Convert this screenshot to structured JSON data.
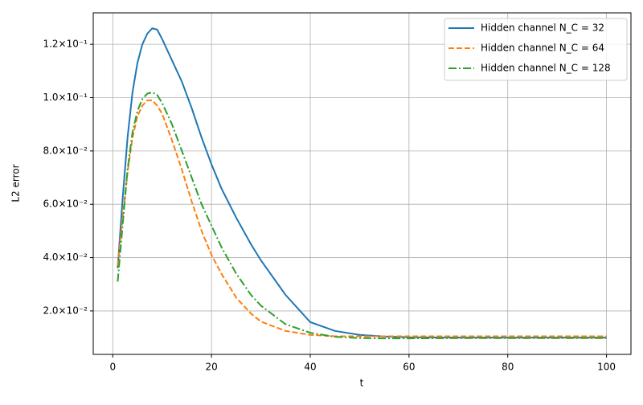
{
  "chart_data": {
    "type": "line",
    "xlabel": "t",
    "ylabel": "L2 error",
    "grid": true,
    "legend": "upper right",
    "x": [
      1,
      2,
      3,
      4,
      5,
      6,
      7,
      8,
      9,
      10,
      12,
      14,
      16,
      18,
      20,
      22,
      25,
      28,
      30,
      35,
      40,
      45,
      50,
      55,
      60,
      70,
      80,
      90,
      100
    ],
    "series": [
      {
        "name": "Hidden channel N_C = 32",
        "color": "#1f77b4",
        "linestyle": "solid",
        "values": [
          0.036,
          0.062,
          0.085,
          0.102,
          0.113,
          0.12,
          0.124,
          0.126,
          0.1255,
          0.122,
          0.114,
          0.106,
          0.096,
          0.085,
          0.075,
          0.066,
          0.055,
          0.045,
          0.039,
          0.026,
          0.0158,
          0.0125,
          0.011,
          0.0104,
          0.0101,
          0.01,
          0.01,
          0.01,
          0.01
        ]
      },
      {
        "name": "Hidden channel N_C = 64",
        "color": "#ff7f0e",
        "linestyle": "dashed",
        "values": [
          0.037,
          0.055,
          0.072,
          0.085,
          0.093,
          0.097,
          0.099,
          0.099,
          0.097,
          0.094,
          0.084,
          0.073,
          0.061,
          0.05,
          0.041,
          0.034,
          0.025,
          0.019,
          0.016,
          0.0125,
          0.011,
          0.0105,
          0.0105,
          0.0105,
          0.0105,
          0.0105,
          0.0105,
          0.0105,
          0.0105
        ]
      },
      {
        "name": "Hidden channel N_C = 128",
        "color": "#2ca02c",
        "linestyle": "dashdot",
        "values": [
          0.031,
          0.052,
          0.073,
          0.087,
          0.095,
          0.0995,
          0.1015,
          0.102,
          0.101,
          0.098,
          0.09,
          0.08,
          0.07,
          0.06,
          0.052,
          0.044,
          0.034,
          0.026,
          0.022,
          0.015,
          0.0118,
          0.0103,
          0.0098,
          0.0097,
          0.0097,
          0.0098,
          0.0098,
          0.0098,
          0.0098
        ]
      }
    ],
    "xlim": [
      -3.95,
      104.95
    ],
    "xticks": [
      0,
      20,
      40,
      60,
      80,
      100
    ],
    "ylim": [
      0.0037,
      0.1318
    ],
    "yticks": [
      {
        "value": 0.02,
        "label": "2.0×10⁻²"
      },
      {
        "value": 0.04,
        "label": "4.0×10⁻²"
      },
      {
        "value": 0.06,
        "label": "6.0×10⁻²"
      },
      {
        "value": 0.08,
        "label": "8.0×10⁻²"
      },
      {
        "value": 0.1,
        "label": "1.0×10⁻¹"
      },
      {
        "value": 0.12,
        "label": "1.2×10⁻¹"
      }
    ]
  }
}
